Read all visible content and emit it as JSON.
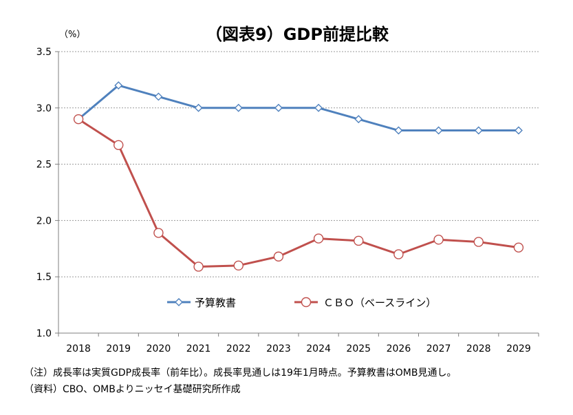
{
  "chart_data": {
    "type": "line",
    "title": "（図表9）GDP前提比較",
    "unit_label": "（%）",
    "x": [
      "2018",
      "2019",
      "2020",
      "2021",
      "2022",
      "2023",
      "2024",
      "2025",
      "2026",
      "2027",
      "2028",
      "2029"
    ],
    "ylim": [
      1.0,
      3.5
    ],
    "yticks": [
      "1.0",
      "1.5",
      "2.0",
      "2.5",
      "3.0",
      "3.5"
    ],
    "grid": true,
    "legend_position": "bottom-center",
    "series": [
      {
        "name": "予算教書",
        "color": "#4f81bd",
        "marker": "diamond",
        "values": [
          2.9,
          3.2,
          3.1,
          3.0,
          3.0,
          3.0,
          3.0,
          2.9,
          2.8,
          2.8,
          2.8,
          2.8
        ]
      },
      {
        "name": "ＣＢＯ（ベースライン）",
        "color": "#c0504d",
        "marker": "circle",
        "values": [
          2.9,
          2.67,
          1.89,
          1.59,
          1.6,
          1.68,
          1.84,
          1.82,
          1.7,
          1.83,
          1.81,
          1.76
        ]
      }
    ]
  },
  "notes": {
    "note1": "（注）成長率は実質GDP成長率（前年比）。成長率見通しは19年1月時点。予算教書はOMB見通し。",
    "source": "（資料）CBO、OMBよりニッセイ基礎研究所作成"
  }
}
